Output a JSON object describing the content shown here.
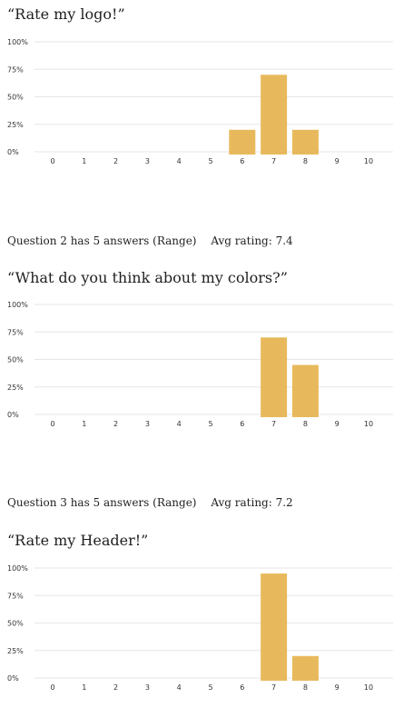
{
  "questions": [
    {
      "title": "“Rate my logo!”",
      "meta": null
    },
    {
      "title": "“What do you think about my colors?”",
      "meta": {
        "answers_text": "Question 2 has 5 answers (Range)",
        "avg_text": "Avg rating: 7.4"
      }
    },
    {
      "title": "“Rate my Header!”",
      "meta": {
        "answers_text": "Question 3 has 5 answers (Range)",
        "avg_text": "Avg rating: 7.2"
      }
    }
  ],
  "colors": {
    "bar": "#E8B95C",
    "grid": "#E6E6E6",
    "text": "#333333"
  },
  "chart_data": [
    {
      "type": "bar",
      "categories": [
        "0",
        "1",
        "2",
        "3",
        "4",
        "5",
        "6",
        "7",
        "8",
        "9",
        "10"
      ],
      "values": [
        0,
        0,
        0,
        0,
        0,
        0,
        20,
        70,
        20,
        0,
        0
      ],
      "y_ticks": [
        "0%",
        "25%",
        "50%",
        "75%",
        "100%"
      ],
      "ylim": [
        0,
        100
      ],
      "title": "“Rate my logo!”",
      "xlabel": "",
      "ylabel": "",
      "grid": true
    },
    {
      "type": "bar",
      "categories": [
        "0",
        "1",
        "2",
        "3",
        "4",
        "5",
        "6",
        "7",
        "8",
        "9",
        "10"
      ],
      "values": [
        0,
        0,
        0,
        0,
        0,
        0,
        0,
        70,
        45,
        0,
        0
      ],
      "y_ticks": [
        "0%",
        "25%",
        "50%",
        "75%",
        "100%"
      ],
      "ylim": [
        0,
        100
      ],
      "title": "“What do you think about my colors?”",
      "xlabel": "",
      "ylabel": "",
      "grid": true
    },
    {
      "type": "bar",
      "categories": [
        "0",
        "1",
        "2",
        "3",
        "4",
        "5",
        "6",
        "7",
        "8",
        "9",
        "10"
      ],
      "values": [
        0,
        0,
        0,
        0,
        0,
        0,
        0,
        95,
        20,
        0,
        0
      ],
      "y_ticks": [
        "0%",
        "25%",
        "50%",
        "75%",
        "100%"
      ],
      "ylim": [
        0,
        100
      ],
      "title": "“Rate my Header!”",
      "xlabel": "",
      "ylabel": "",
      "grid": true
    }
  ]
}
